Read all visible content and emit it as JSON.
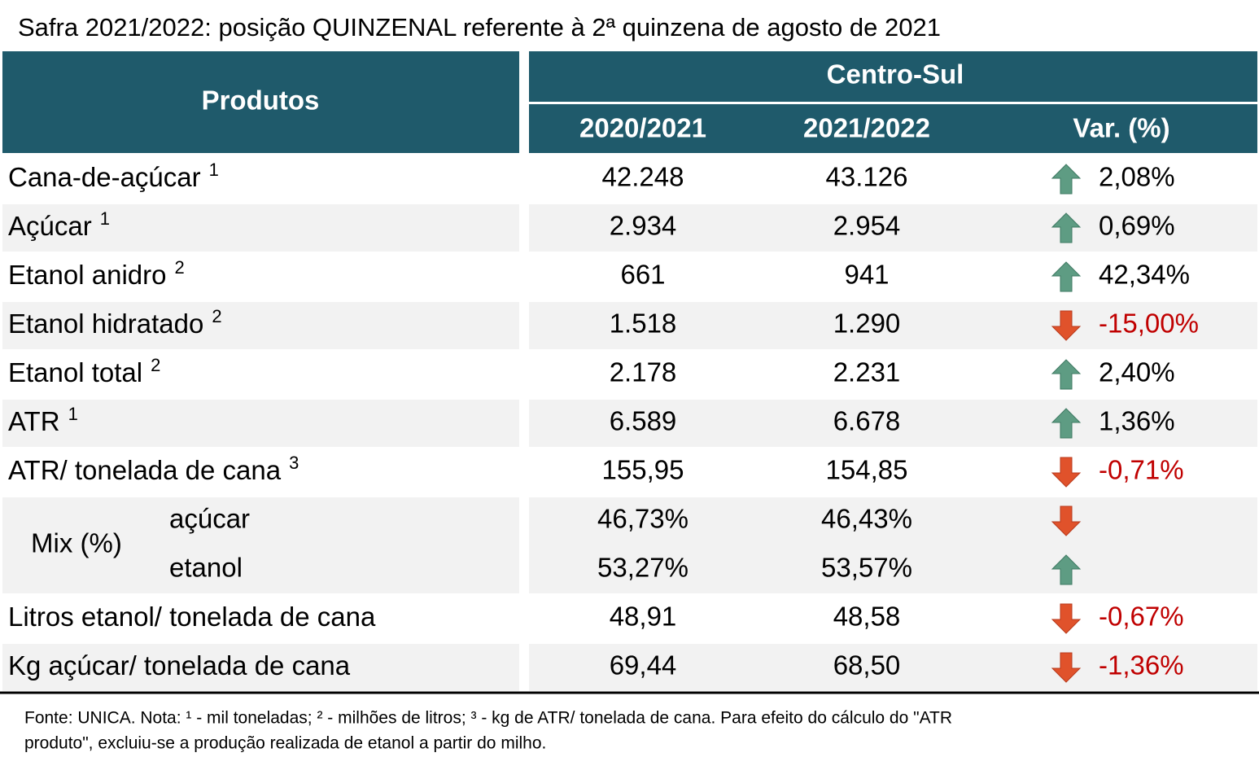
{
  "title": "Safra 2021/2022: posição QUINZENAL referente à 2ª quinzena de agosto de 2021",
  "header": {
    "products": "Produtos",
    "region": "Centro-Sul",
    "columns": [
      "2020/2021",
      "2021/2022",
      "Var. (%)"
    ]
  },
  "rows": [
    {
      "label": "Cana-de-açúcar",
      "note": "1",
      "values": [
        "42.248",
        "43.126"
      ],
      "var": "2,08%",
      "trend": "up"
    },
    {
      "label": "Açúcar",
      "note": "1",
      "values": [
        "2.934",
        "2.954"
      ],
      "var": "0,69%",
      "trend": "up"
    },
    {
      "label": "Etanol anidro",
      "note": "2",
      "values": [
        "661",
        "941"
      ],
      "var": "42,34%",
      "trend": "up"
    },
    {
      "label": "Etanol hidratado",
      "note": "2",
      "values": [
        "1.518",
        "1.290"
      ],
      "var": "-15,00%",
      "trend": "down"
    },
    {
      "label": "Etanol total",
      "note": "2",
      "values": [
        "2.178",
        "2.231"
      ],
      "var": "2,40%",
      "trend": "up"
    },
    {
      "label": "ATR",
      "note": "1",
      "values": [
        "6.589",
        "6.678"
      ],
      "var": "1,36%",
      "trend": "up"
    },
    {
      "label": "ATR/ tonelada de cana",
      "note": "3",
      "values": [
        "155,95",
        "154,85"
      ],
      "var": "-0,71%",
      "trend": "down"
    },
    {
      "label": "Mix (%)",
      "sub": [
        {
          "label": "açúcar",
          "values": [
            "46,73%",
            "46,43%"
          ],
          "trend": "down"
        },
        {
          "label": "etanol",
          "values": [
            "53,27%",
            "53,57%"
          ],
          "trend": "up"
        }
      ]
    },
    {
      "label": "Litros etanol/ tonelada de cana",
      "values": [
        "48,91",
        "48,58"
      ],
      "var": "-0,67%",
      "trend": "down"
    },
    {
      "label": "Kg açúcar/ tonelada de cana",
      "values": [
        "69,44",
        "68,50"
      ],
      "var": "-1,36%",
      "trend": "down"
    }
  ],
  "footnote": [
    "Fonte: UNICA. Nota: ¹ - mil toneladas; ² - milhões de litros; ³ - kg de ATR/ tonelada de cana. Para efeito do cálculo do \"ATR",
    "produto\", excluiu-se a produção realizada de etanol a partir do milho."
  ]
}
